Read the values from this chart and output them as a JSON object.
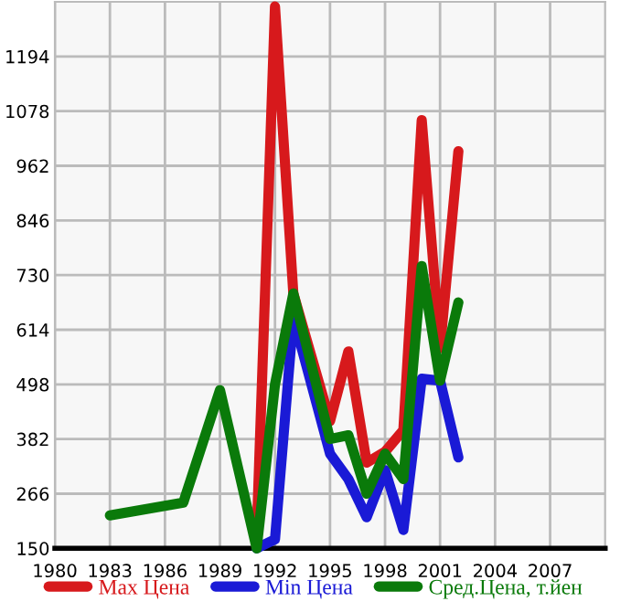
{
  "chart_data": {
    "type": "line",
    "xlim": [
      1980,
      2010
    ],
    "xticks": [
      1980,
      1983,
      1986,
      1989,
      1992,
      1995,
      1998,
      2001,
      2004,
      2007
    ],
    "ylim": [
      150,
      1310
    ],
    "yticks": [
      150,
      266,
      382,
      498,
      614,
      730,
      846,
      962,
      1078,
      1194
    ],
    "grid": true,
    "legend": "bottom",
    "marker": "none",
    "line_style": "solid",
    "series": [
      {
        "name": "Max Цена",
        "color": "#d7191c",
        "x": [
          1991,
          1992,
          1993,
          1995,
          1996,
          1997,
          1998,
          1999,
          2000,
          2001,
          2002
        ],
        "values": [
          177,
          1300,
          691,
          420,
          568,
          332,
          355,
          401,
          1059,
          575,
          993
        ]
      },
      {
        "name": "Min Цена",
        "color": "#1a1ad6",
        "x": [
          1991,
          1992,
          1993,
          1995,
          1996,
          1997,
          1998,
          1999,
          2000,
          2001,
          2002
        ],
        "values": [
          150,
          169,
          641,
          351,
          297,
          216,
          316,
          189,
          510,
          506,
          343
        ]
      },
      {
        "name": "Сред.Цена, т.йен",
        "color": "#0a7a0a",
        "x": [
          1983,
          1987,
          1989,
          1991,
          1992,
          1993,
          1995,
          1996,
          1997,
          1998,
          1999,
          2000,
          2001,
          2002
        ],
        "values": [
          220,
          247,
          486,
          150,
          498,
          691,
          382,
          390,
          266,
          351,
          297,
          749,
          506,
          672
        ]
      }
    ]
  }
}
